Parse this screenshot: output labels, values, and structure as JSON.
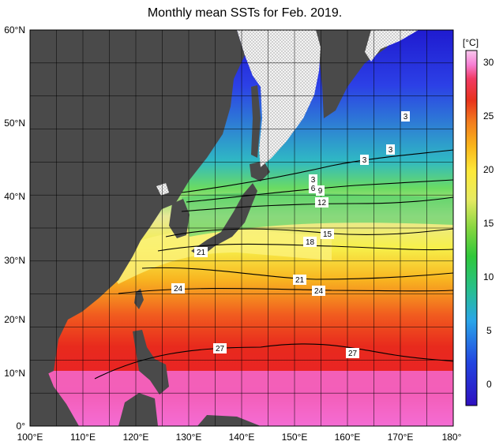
{
  "title": "Monthly mean SSTs for Feb. 2019.",
  "axes": {
    "y_ticks": [
      "0°",
      "10°N",
      "20°N",
      "30°N",
      "40°N",
      "50°N",
      "60°N"
    ],
    "x_ticks": [
      "100°E",
      "110°E",
      "120°E",
      "130°E",
      "140°E",
      "150°E",
      "160°E",
      "170°E",
      "180°"
    ]
  },
  "colorbar": {
    "unit": "[°C]",
    "ticks": [
      "0",
      "5",
      "10",
      "15",
      "20",
      "25",
      "30"
    ],
    "colors": [
      "#2e10c0",
      "#2244e0",
      "#2aa6e8",
      "#27c08a",
      "#2fc83a",
      "#86d640",
      "#e6ea62",
      "#fde93a",
      "#f9b61b",
      "#f27b1e",
      "#e8321c",
      "#f13a63",
      "#f77fd4",
      "#f9c8ee"
    ]
  },
  "contour_labels": [
    "3",
    "3",
    "3",
    "3",
    "6",
    "9",
    "12",
    "15",
    "18",
    "21",
    "21",
    "24",
    "24",
    "27",
    "27"
  ],
  "colors": {
    "land": "#4a4a4a",
    "ice": "#f2f2f2",
    "grid": "#000000"
  }
}
